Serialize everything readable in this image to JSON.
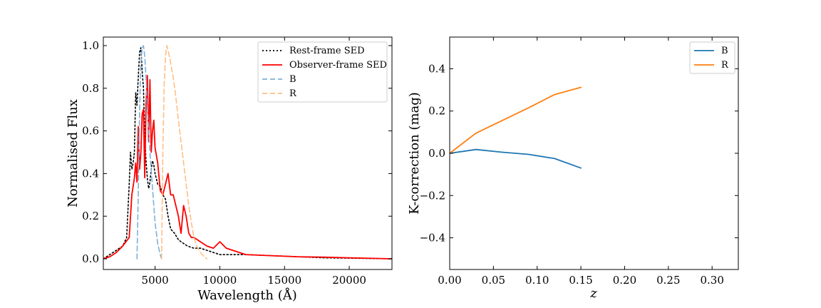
{
  "chart_data": [
    {
      "type": "line",
      "title": "",
      "xlabel": "Wavelength (Å)",
      "ylabel": "Normalised Flux",
      "xlim": [
        1000,
        23300
      ],
      "ylim": [
        -0.05,
        1.04
      ],
      "xticks": [
        5000,
        10000,
        15000,
        20000
      ],
      "yticks": [
        0.0,
        0.2,
        0.4,
        0.6,
        0.8,
        1.0
      ],
      "xtick_labels": [
        "5000",
        "10000",
        "15000",
        "20000"
      ],
      "ytick_labels": [
        "0.0",
        "0.2",
        "0.4",
        "0.6",
        "0.8",
        "1.0"
      ],
      "legend_position": "top-right",
      "series": [
        {
          "name": "Rest-frame SED",
          "color": "#000000",
          "style": "dotted",
          "x": [
            1000,
            1500,
            2000,
            2500,
            2800,
            3000,
            3100,
            3200,
            3300,
            3400,
            3500,
            3600,
            3700,
            3800,
            3900,
            4000,
            4100,
            4200,
            4300,
            4400,
            4500,
            4600,
            4700,
            4800,
            4900,
            5000,
            5200,
            5400,
            5600,
            5800,
            6000,
            6200,
            6500,
            6800,
            7000,
            7500,
            8000,
            8500,
            9000,
            9500,
            10000,
            11000,
            12000,
            14000,
            16000,
            18000,
            20000,
            23300
          ],
          "y": [
            0.0,
            0.02,
            0.04,
            0.06,
            0.1,
            0.35,
            0.5,
            0.42,
            0.45,
            0.5,
            0.78,
            0.72,
            0.85,
            0.97,
            0.99,
            0.88,
            0.8,
            0.58,
            0.46,
            0.38,
            0.33,
            0.36,
            0.42,
            0.46,
            0.44,
            0.4,
            0.35,
            0.34,
            0.3,
            0.28,
            0.2,
            0.14,
            0.12,
            0.09,
            0.08,
            0.06,
            0.05,
            0.05,
            0.04,
            0.03,
            0.02,
            0.02,
            0.02,
            0.015,
            0.01,
            0.005,
            0.003,
            0.0
          ]
        },
        {
          "name": "Observer-frame SED",
          "color": "#ff0000",
          "style": "solid",
          "x": [
            1000,
            1500,
            2000,
            2500,
            3000,
            3200,
            3400,
            3500,
            3600,
            3700,
            3800,
            3900,
            4000,
            4100,
            4200,
            4300,
            4400,
            4500,
            4600,
            4700,
            4800,
            4900,
            5000,
            5200,
            5400,
            5600,
            5800,
            6000,
            6200,
            6400,
            6600,
            6800,
            7000,
            7200,
            7400,
            7600,
            7800,
            8000,
            8500,
            9000,
            9500,
            10000,
            10500,
            11000,
            12000,
            14000,
            16000,
            18000,
            20000,
            23300
          ],
          "y": [
            0.0,
            0.01,
            0.03,
            0.06,
            0.1,
            0.3,
            0.38,
            0.45,
            0.36,
            0.62,
            0.42,
            0.5,
            0.68,
            0.7,
            0.38,
            0.72,
            0.86,
            0.55,
            0.84,
            0.5,
            0.6,
            0.65,
            0.52,
            0.45,
            0.32,
            0.3,
            0.35,
            0.4,
            0.3,
            0.3,
            0.25,
            0.2,
            0.12,
            0.25,
            0.2,
            0.12,
            0.1,
            0.1,
            0.08,
            0.06,
            0.05,
            0.08,
            0.05,
            0.04,
            0.02,
            0.015,
            0.01,
            0.008,
            0.005,
            0.0
          ]
        },
        {
          "name": "B",
          "color": "#7fb1d8",
          "style": "dashed",
          "x": [
            3600,
            3700,
            3800,
            3900,
            4000,
            4100,
            4200,
            4300,
            4400,
            4500,
            4600,
            4800,
            5000,
            5200,
            5400,
            5500
          ],
          "y": [
            0.0,
            0.3,
            0.7,
            0.92,
            0.99,
            1.0,
            0.95,
            0.85,
            0.72,
            0.6,
            0.5,
            0.33,
            0.17,
            0.07,
            0.02,
            0.0
          ]
        },
        {
          "name": "R",
          "color": "#ffbf85",
          "style": "dashed",
          "x": [
            5500,
            5600,
            5700,
            5800,
            5900,
            6000,
            6200,
            6400,
            6600,
            6800,
            7000,
            7200,
            7400,
            7600,
            7800,
            8000,
            8200,
            8500,
            8800,
            9000
          ],
          "y": [
            0.0,
            0.5,
            0.82,
            0.95,
            1.0,
            0.98,
            0.92,
            0.85,
            0.76,
            0.65,
            0.55,
            0.45,
            0.35,
            0.25,
            0.17,
            0.1,
            0.06,
            0.03,
            0.01,
            0.0
          ]
        }
      ]
    },
    {
      "type": "line",
      "title": "",
      "xlabel": "z",
      "ylabel": "K-correction (mag)",
      "xlim": [
        0.0,
        0.33
      ],
      "ylim": [
        -0.55,
        0.55
      ],
      "xticks": [
        0.0,
        0.05,
        0.1,
        0.15,
        0.2,
        0.25,
        0.3
      ],
      "yticks": [
        -0.4,
        -0.2,
        0.0,
        0.2,
        0.4
      ],
      "xtick_labels": [
        "0.00",
        "0.05",
        "0.10",
        "0.15",
        "0.20",
        "0.25",
        "0.30"
      ],
      "ytick_labels": [
        "−0.4",
        "−0.2",
        "0.0",
        "0.2",
        "0.4"
      ],
      "legend_position": "top-right",
      "series": [
        {
          "name": "B",
          "color": "#1f77b4",
          "style": "solid",
          "x": [
            0.0,
            0.03,
            0.06,
            0.09,
            0.12,
            0.15
          ],
          "y": [
            0.0,
            0.018,
            0.005,
            -0.005,
            -0.025,
            -0.07
          ]
        },
        {
          "name": "R",
          "color": "#ff7f0e",
          "style": "solid",
          "x": [
            0.0,
            0.03,
            0.06,
            0.09,
            0.12,
            0.15
          ],
          "y": [
            0.0,
            0.095,
            0.155,
            0.215,
            0.278,
            0.312
          ]
        }
      ]
    }
  ]
}
